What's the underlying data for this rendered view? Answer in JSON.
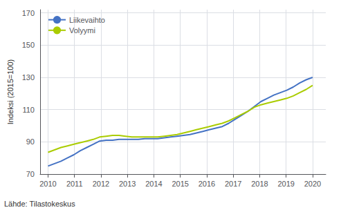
{
  "chart_data": {
    "type": "line",
    "ylabel": "Indeksi (2015=100)",
    "source": "Lähde: Tilastokeskus",
    "x": [
      2010,
      2010.243902439,
      2010.487804878,
      2010.731707317,
      2010.975609756,
      2011.219512195,
      2011.463414634,
      2011.707317073,
      2011.951219512,
      2012.195121951,
      2012.43902439,
      2012.682926829,
      2012.926829268,
      2013.170731707,
      2013.414634146,
      2013.658536585,
      2013.902439024,
      2014.146341463,
      2014.390243902,
      2014.634146341,
      2014.87804878,
      2015.12195122,
      2015.365853659,
      2015.609756098,
      2015.853658537,
      2016.097560976,
      2016.341463415,
      2016.585365854,
      2016.829268293,
      2017.073170732,
      2017.317073171,
      2017.56097561,
      2017.804878049,
      2018.048780488,
      2018.292682927,
      2018.536585366,
      2018.780487805,
      2019.024390244,
      2019.268292683,
      2019.512195122,
      2019.756097561,
      2020
    ],
    "series": [
      {
        "name": "Liikevaihto",
        "color": "#4472C4",
        "values": [
          75.0,
          76.5,
          78.0,
          80.0,
          82.0,
          84.5,
          86.5,
          88.5,
          90.5,
          91.0,
          91.0,
          91.5,
          91.5,
          91.5,
          91.5,
          92.0,
          92.0,
          92.0,
          92.5,
          93.0,
          93.5,
          94.0,
          94.5,
          95.5,
          96.5,
          97.5,
          98.5,
          99.5,
          101.5,
          104.0,
          106.5,
          109.0,
          112.0,
          115.0,
          117.0,
          119.0,
          120.5,
          122.0,
          124.0,
          126.5,
          128.5,
          130.0
        ]
      },
      {
        "name": "Volyymi",
        "color": "#AACC00",
        "values": [
          83.5,
          85.0,
          86.5,
          87.5,
          88.5,
          89.5,
          90.5,
          91.5,
          93.0,
          93.5,
          94.0,
          94.0,
          93.5,
          93.0,
          93.0,
          93.0,
          93.0,
          93.0,
          93.5,
          94.0,
          94.5,
          95.5,
          96.5,
          97.5,
          98.5,
          99.5,
          100.5,
          101.5,
          103.0,
          105.0,
          107.0,
          109.0,
          111.5,
          113.0,
          114.0,
          115.0,
          116.0,
          117.0,
          118.5,
          120.5,
          122.5,
          125.0
        ]
      }
    ],
    "xlim": [
      2009.7,
      2020.5
    ],
    "ylim": [
      70,
      172
    ],
    "xticks": [
      2010,
      2011,
      2012,
      2013,
      2014,
      2015,
      2016,
      2017,
      2018,
      2019,
      2020
    ],
    "yticks": [
      70,
      90,
      110,
      130,
      150,
      170
    ],
    "grid": true,
    "legend": "upper left"
  }
}
